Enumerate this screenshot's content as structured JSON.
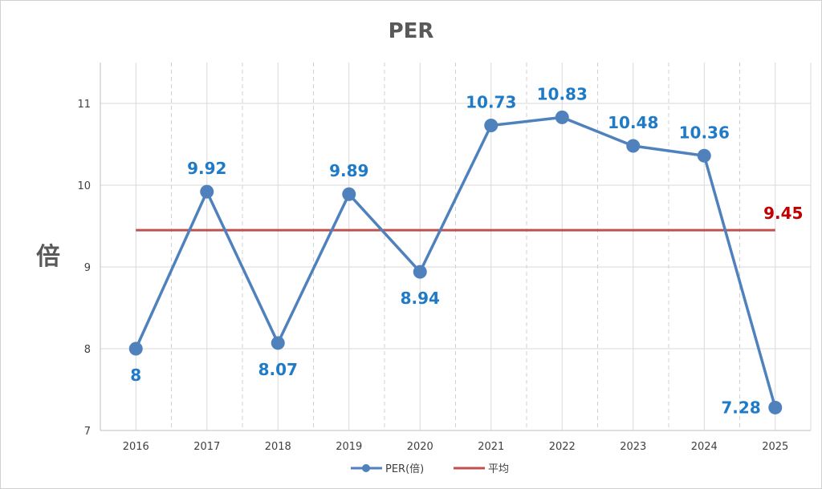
{
  "chart_data": {
    "type": "line",
    "title": "PER",
    "ylabel": "倍",
    "xlabel": "",
    "categories": [
      "2016",
      "2017",
      "2018",
      "2019",
      "2020",
      "2021",
      "2022",
      "2023",
      "2024",
      "2025"
    ],
    "ylim": [
      7,
      11.5
    ],
    "yticks": [
      7,
      8,
      9,
      10,
      11
    ],
    "series": [
      {
        "name": "PER(倍)",
        "values": [
          8,
          9.92,
          8.07,
          9.89,
          8.94,
          10.73,
          10.83,
          10.48,
          10.36,
          7.28
        ],
        "labels": [
          "8",
          "9.92",
          "8.07",
          "9.89",
          "8.94",
          "10.73",
          "10.83",
          "10.48",
          "10.36",
          "7.28"
        ],
        "label_pos": [
          "below",
          "above",
          "below",
          "above",
          "below",
          "above",
          "above",
          "above",
          "above",
          "left"
        ],
        "color": "#4f81bd",
        "label_color": "#1f7ac7"
      },
      {
        "name": "平均",
        "value": 9.45,
        "label": "9.45",
        "color": "#c0504d",
        "label_color": "#c00000"
      }
    ],
    "legend": "bottom",
    "grid": true
  }
}
